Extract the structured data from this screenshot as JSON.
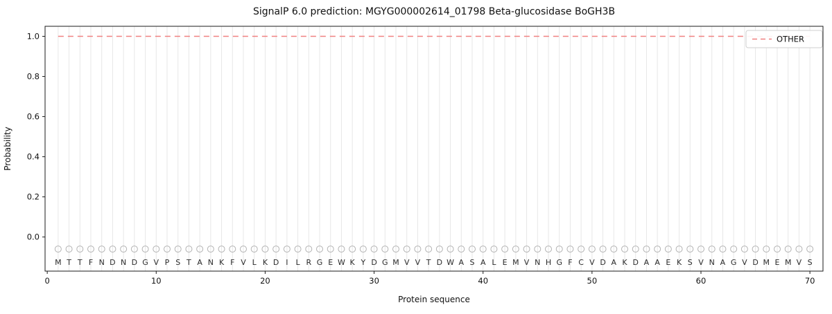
{
  "chart_data": {
    "type": "line",
    "title": "SignalP 6.0 prediction: MGYG000002614_01798 Beta-glucosidase BoGH3B",
    "xlabel": "Protein sequence",
    "ylabel": "Probability",
    "xlim": [
      -0.2,
      71.2
    ],
    "ylim": [
      -0.17,
      1.05
    ],
    "xticks": [
      0,
      10,
      20,
      30,
      40,
      50,
      60,
      70
    ],
    "yticks": [
      0.0,
      0.2,
      0.4,
      0.6,
      0.8,
      1.0
    ],
    "grid": {
      "vertical": true,
      "color": "#e7e7e7"
    },
    "sequence": "MTTFNDNDGVPSTANKFVLKDILRGEWKYDGMVVTDWASALEMVNHGFCVDAKDAAEKSVNAGVDMEMVS",
    "sequence_y": -0.125,
    "marker": {
      "symbol": "circle",
      "y": -0.06,
      "color": "#b3b3b3"
    },
    "series": [
      {
        "name": "OTHER",
        "color": "#f08080",
        "style": "dashed",
        "y": 1.0,
        "x_start": 1,
        "x_end": 70
      }
    ],
    "legend": {
      "position": "upper right",
      "entries": [
        "OTHER"
      ]
    }
  }
}
